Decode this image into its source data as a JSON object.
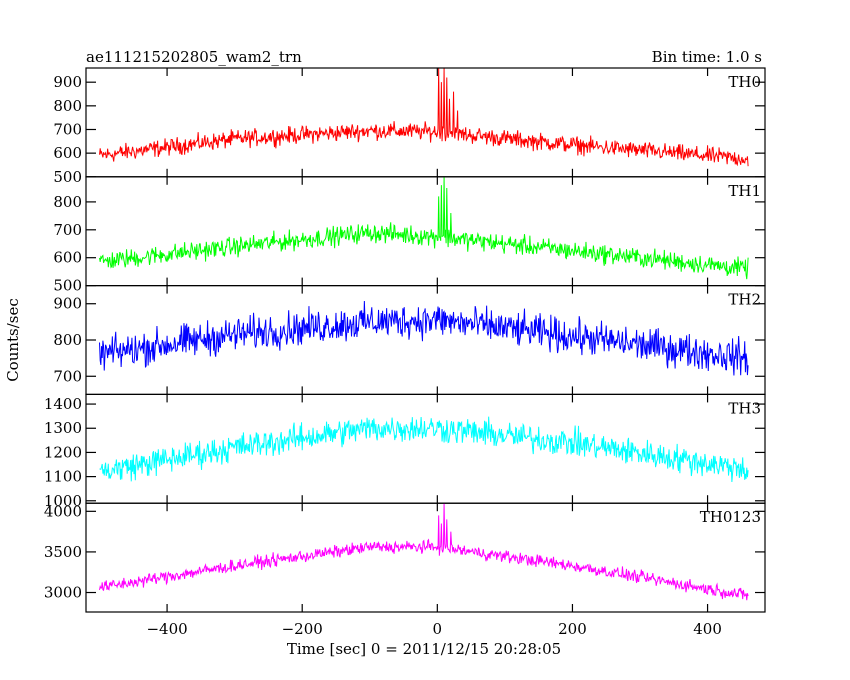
{
  "header": {
    "left_title": "ae111215202805_wam2_trn",
    "right_title": "Bin time: 1.0 s"
  },
  "axes": {
    "ylabel": "Counts/sec",
    "xlabel": "Time [sec] 0 = 2011/12/15 20:28:05"
  },
  "chart_data": {
    "type": "line",
    "title": "ae111215202805_wam2_trn",
    "subtitle": "Bin time: 1.0 s",
    "xlabel": "Time [sec] 0 = 2011/12/15 20:28:05",
    "ylabel": "Counts/sec",
    "xlim": [
      -520,
      485
    ],
    "x_ticks": [
      -400,
      -200,
      0,
      200,
      400
    ],
    "x_tick_labels": [
      "−400",
      "−200",
      "0",
      "200",
      "400"
    ],
    "x_start": -500,
    "x_end": 460,
    "bin_seconds": 1.0,
    "grid": false,
    "panels": [
      {
        "name": "TH0",
        "color": "#ff0000",
        "ylim": [
          500,
          960
        ],
        "y_ticks": [
          500,
          600,
          700,
          800,
          900
        ],
        "baseline_profile": [
          [
            -500,
            590
          ],
          [
            -300,
            660
          ],
          [
            -100,
            695
          ],
          [
            0,
            690
          ],
          [
            200,
            635
          ],
          [
            460,
            575
          ]
        ],
        "noise_amplitude": 38,
        "spikes": [
          [
            2,
            960
          ],
          [
            6,
            900
          ],
          [
            10,
            960
          ],
          [
            14,
            920
          ],
          [
            18,
            830
          ],
          [
            24,
            860
          ],
          [
            30,
            780
          ]
        ]
      },
      {
        "name": "TH1",
        "color": "#00ff00",
        "ylim": [
          500,
          890
        ],
        "y_ticks": [
          500,
          600,
          700,
          800
        ],
        "baseline_profile": [
          [
            -500,
            585
          ],
          [
            -300,
            640
          ],
          [
            -100,
            690
          ],
          [
            0,
            675
          ],
          [
            200,
            625
          ],
          [
            460,
            560
          ]
        ],
        "noise_amplitude": 36,
        "spikes": [
          [
            2,
            820
          ],
          [
            6,
            860
          ],
          [
            10,
            890
          ],
          [
            14,
            850
          ],
          [
            20,
            760
          ]
        ]
      },
      {
        "name": "TH2",
        "color": "#0000ff",
        "ylim": [
          650,
          950
        ],
        "y_ticks": [
          700,
          800,
          900
        ],
        "baseline_profile": [
          [
            -500,
            760
          ],
          [
            -300,
            815
          ],
          [
            -100,
            850
          ],
          [
            0,
            855
          ],
          [
            200,
            810
          ],
          [
            460,
            750
          ]
        ],
        "noise_amplitude": 50,
        "spikes": []
      },
      {
        "name": "TH3",
        "color": "#00ffff",
        "ylim": [
          990,
          1440
        ],
        "y_ticks": [
          1000,
          1100,
          1200,
          1300,
          1400
        ],
        "baseline_profile": [
          [
            -500,
            1120
          ],
          [
            -300,
            1220
          ],
          [
            -100,
            1300
          ],
          [
            0,
            1300
          ],
          [
            200,
            1240
          ],
          [
            460,
            1130
          ]
        ],
        "noise_amplitude": 60,
        "spikes": []
      },
      {
        "name": "TH0123",
        "color": "#ff00ff",
        "ylim": [
          2760,
          4100
        ],
        "y_ticks": [
          3000,
          3500,
          4000
        ],
        "baseline_profile": [
          [
            -500,
            3060
          ],
          [
            -300,
            3330
          ],
          [
            -100,
            3560
          ],
          [
            0,
            3560
          ],
          [
            200,
            3330
          ],
          [
            460,
            2960
          ]
        ],
        "noise_amplitude": 80,
        "spikes": [
          [
            2,
            3950
          ],
          [
            6,
            3850
          ],
          [
            10,
            4100
          ],
          [
            14,
            3900
          ],
          [
            20,
            3750
          ]
        ]
      }
    ]
  }
}
